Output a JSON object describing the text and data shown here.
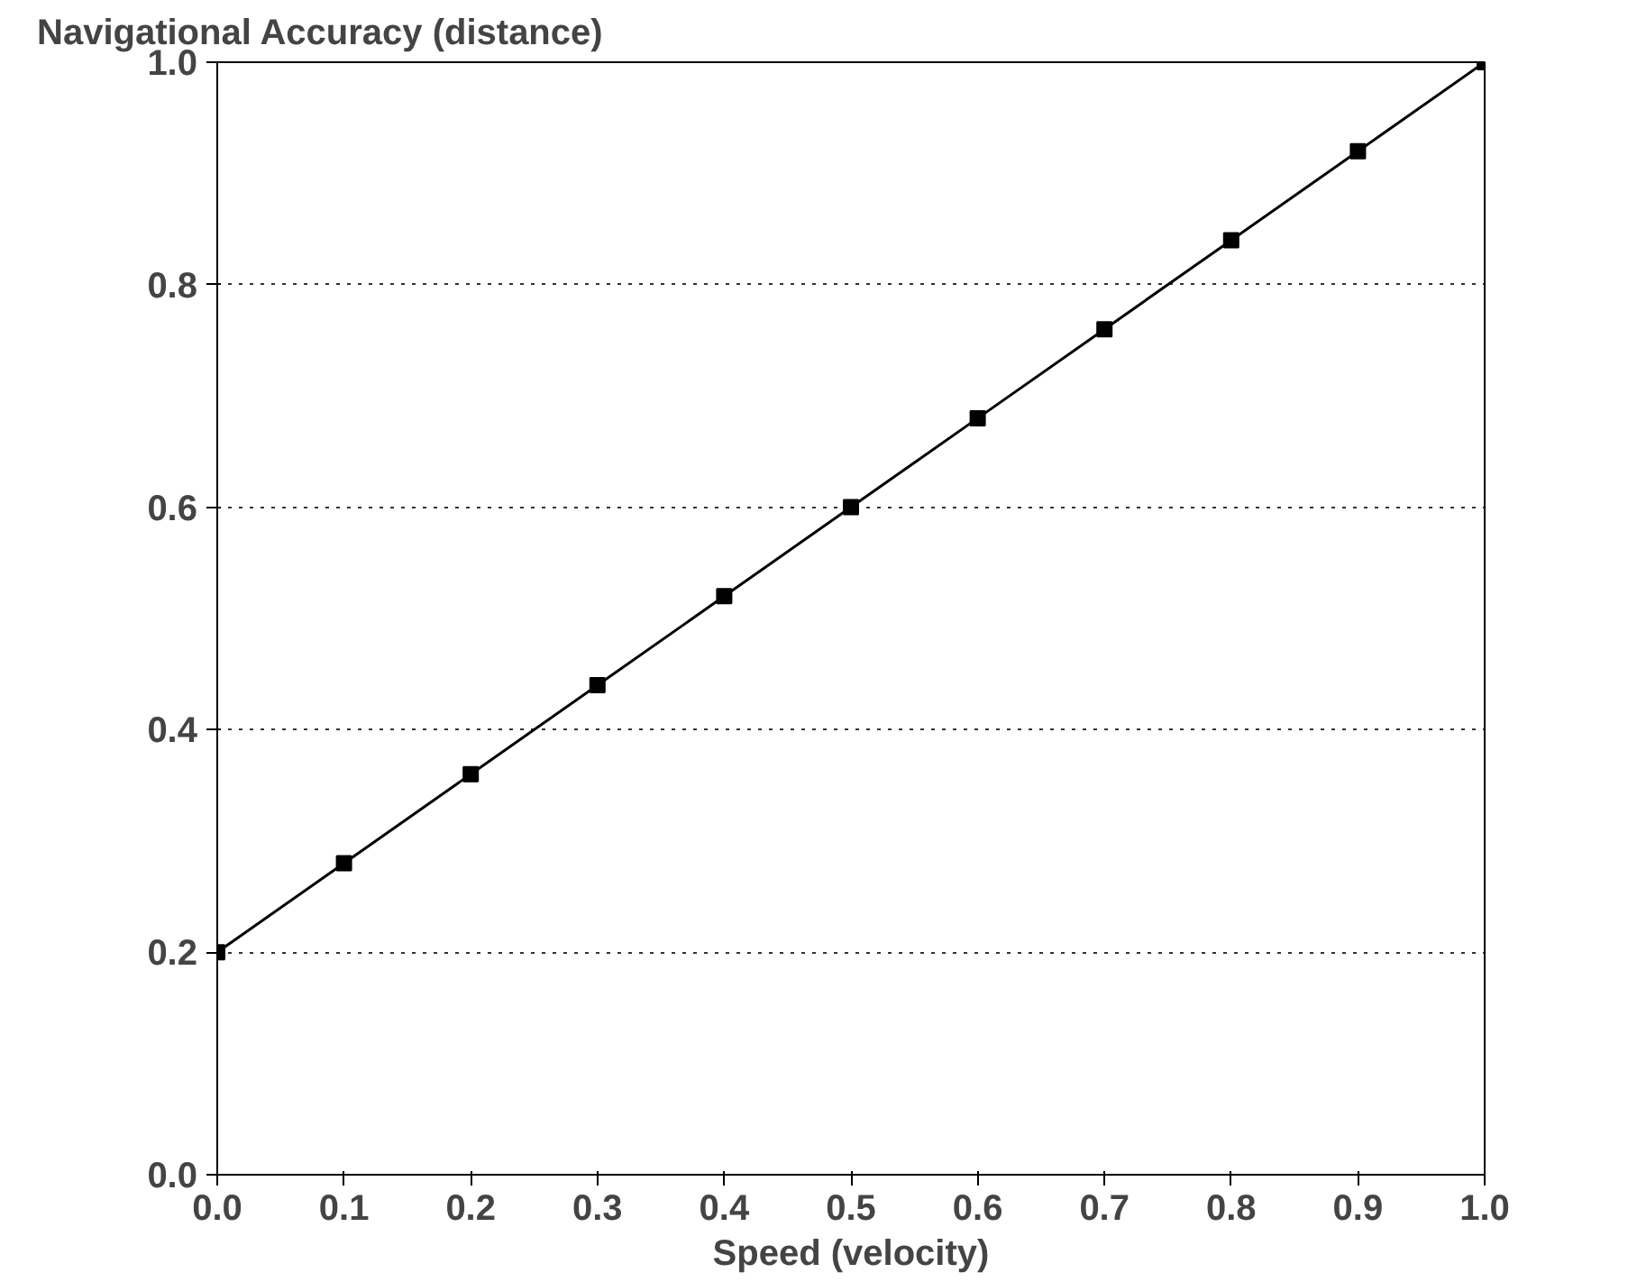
{
  "chart_data": {
    "type": "line",
    "ylabel": "Navigational Accuracy (distance)",
    "xlabel": "Speed (velocity)",
    "x": [
      0.0,
      0.1,
      0.2,
      0.3,
      0.4,
      0.5,
      0.6,
      0.7,
      0.8,
      0.9,
      1.0
    ],
    "series": [
      {
        "color": "#000000",
        "values": [
          0.2,
          0.28,
          0.36,
          0.44,
          0.52,
          0.6,
          0.68,
          0.76,
          0.84,
          0.92,
          1.0
        ]
      }
    ],
    "xlim": [
      0.0,
      1.0
    ],
    "ylim": [
      0.0,
      1.0
    ],
    "xticks": [
      {
        "value": 0,
        "label": "0.0"
      },
      0.1,
      0.2,
      0.3,
      0.4,
      0.5,
      0.6,
      0.7,
      0.8,
      0.9,
      {
        "value": 1,
        "label": "1.0"
      }
    ],
    "yticks": [
      {
        "value": 0,
        "label": "0.0"
      },
      0.2,
      0.4,
      0.6,
      0.8,
      {
        "value": 1,
        "label": "1.0"
      }
    ],
    "grid": "y",
    "marker": "square",
    "line_style": "solid"
  }
}
